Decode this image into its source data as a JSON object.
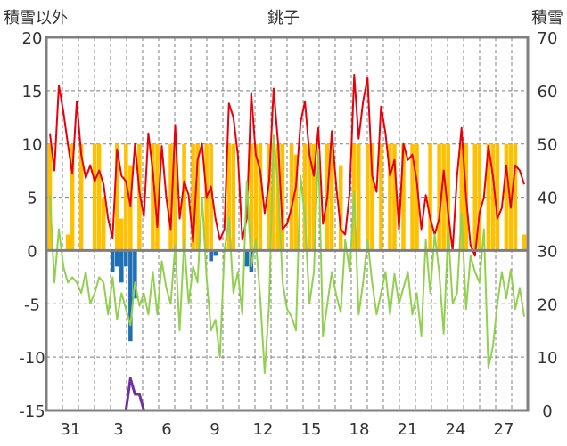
{
  "chart_data": {
    "type": "line",
    "title": "銚子",
    "ylabel_left": "積雪以外",
    "ylabel_right": "積雪",
    "ylim_left": [
      -15,
      20
    ],
    "ylim_right": [
      0,
      70
    ],
    "y_ticks_left": [
      "20",
      "15",
      "10",
      "5",
      "0",
      "-5",
      "-10",
      "-15"
    ],
    "y_ticks_right": [
      "70",
      "60",
      "50",
      "40",
      "30",
      "20",
      "10",
      "0"
    ],
    "x_tick_labels": [
      "31",
      "3",
      "6",
      "9",
      "12",
      "15",
      "18",
      "21",
      "24",
      "27"
    ],
    "colors": {
      "temperature": "#e8000b",
      "temperature_green": "#92d050",
      "sunshine": "#ffc000",
      "precip": "#1f6fb5",
      "snow": "#7030a0",
      "zero_line": "#7f7f7f",
      "frame": "#808080"
    },
    "series": [
      {
        "key": "red",
        "color": "#e8000b",
        "values": [
          11,
          7.5,
          15.5,
          13,
          10,
          7.2,
          14,
          9,
          6.8,
          8,
          6.5,
          7.5,
          6.2,
          3,
          1.2,
          9.5,
          7,
          6.5,
          4.2,
          10,
          5.5,
          3.2,
          11,
          7.5,
          2.2,
          9.8,
          5,
          2,
          11.8,
          3,
          6.5,
          5.2,
          0.8,
          8.5,
          10,
          5,
          6,
          3,
          1,
          2,
          13.8,
          12.5,
          9,
          1,
          3,
          14.8,
          9,
          7.5,
          3.5,
          6.5,
          15.2,
          10,
          2,
          2.5,
          4,
          6,
          12,
          14,
          9,
          7,
          11.5,
          2.5,
          5,
          11.2,
          6,
          2,
          1.5,
          5.5,
          16.5,
          10.5,
          14,
          16.2,
          7,
          5.5,
          13.5,
          11,
          7,
          8.5,
          2,
          10,
          8.5,
          9,
          6.5,
          2,
          5.2,
          3,
          1.5,
          3,
          7.5,
          3.5,
          0,
          7,
          11.5,
          5,
          0.5,
          -0.5,
          3.5,
          5,
          9.8,
          7,
          3,
          4,
          8,
          4,
          8,
          7.5,
          6.2
        ]
      },
      {
        "key": "green",
        "color": "#92d050",
        "values": [
          5.2,
          -3,
          2,
          -1.5,
          -3,
          -2.5,
          -3,
          -4,
          -2,
          -5,
          -4,
          -2.5,
          -3,
          -6,
          -2.5,
          -6.5,
          -4,
          -5.5,
          -7,
          -3,
          -5.2,
          -4,
          -6,
          -2,
          -6,
          -1,
          -3.5,
          -5,
          0.5,
          -7.5,
          1,
          -5,
          -1.5,
          -3,
          5,
          -2.5,
          -7.5,
          -6.5,
          -10,
          0,
          3,
          -4,
          -2,
          -6,
          6.5,
          -1.5,
          1,
          -4.5,
          -11.5,
          -5,
          10.8,
          6,
          -3,
          -5.5,
          -6.2,
          -7.5,
          7,
          3,
          -5,
          -2,
          9.5,
          -8,
          -5,
          -2,
          -4.2,
          -5.8,
          1,
          -2,
          5.5,
          -6,
          -3,
          1,
          -3,
          -6,
          -4,
          -2,
          -6,
          -2.2,
          -5,
          -3.5,
          -2,
          -6,
          -4,
          -8,
          1,
          -4,
          1.5,
          -2,
          -7.8,
          2,
          -5,
          -4,
          3.5,
          -5.5,
          -0.5,
          -2,
          -3,
          2,
          -11,
          -9,
          -5,
          -2,
          -4.5,
          -1.8,
          -5.5,
          -3.5,
          -6.2
        ]
      },
      {
        "key": "yellow",
        "color": "#ffc000",
        "type": "bar",
        "values": [
          10,
          0,
          0,
          0,
          1.5,
          10,
          0,
          10,
          0,
          0,
          10,
          10,
          5,
          0,
          0,
          10,
          3,
          10,
          8,
          0,
          10,
          0,
          0,
          10,
          10,
          0,
          0,
          10,
          10,
          0,
          10,
          0,
          10,
          10,
          0,
          10,
          10,
          0,
          0,
          0,
          10,
          10,
          0,
          0,
          0,
          10,
          10,
          10,
          0,
          10,
          10,
          10,
          10,
          0,
          10,
          9,
          0,
          10,
          10,
          10,
          0,
          0,
          10,
          10,
          0,
          8,
          0,
          0,
          10,
          10,
          0,
          10,
          10,
          0,
          10,
          0,
          10,
          10,
          0,
          10,
          0,
          10,
          10,
          0,
          0,
          10,
          0,
          10,
          10,
          10,
          0,
          0,
          10,
          10,
          0,
          10,
          10,
          0,
          10,
          10,
          10,
          0,
          10,
          10,
          10,
          0,
          1.5
        ]
      },
      {
        "key": "blue",
        "color": "#1f6fb5",
        "type": "bar",
        "values": [
          0,
          0,
          0,
          0,
          0,
          0,
          0,
          0,
          0,
          0,
          0,
          0,
          0,
          0,
          -2,
          -1.5,
          -3,
          -1.5,
          -8.5,
          -4.5,
          0,
          0,
          0,
          0,
          0,
          0,
          0,
          0,
          0,
          0,
          0,
          0,
          0,
          0,
          0,
          0,
          -1,
          -0.5,
          0,
          0,
          0,
          0,
          0,
          0,
          -1.5,
          -2,
          0,
          0,
          0,
          0,
          0,
          0,
          0,
          0,
          0,
          0,
          0,
          0,
          0,
          0,
          0,
          0,
          0,
          0,
          0,
          0,
          0,
          0,
          0,
          0,
          0,
          0,
          0,
          0,
          0,
          0,
          0,
          0,
          0,
          0,
          0,
          0,
          0,
          0,
          0,
          0,
          0,
          0,
          0,
          0,
          0,
          0,
          0,
          0,
          0,
          0,
          0,
          0,
          0,
          0,
          0,
          0,
          0,
          0,
          0,
          0,
          0
        ]
      },
      {
        "key": "purple",
        "color": "#7030a0",
        "axis": "right",
        "values": [
          0,
          0,
          0,
          0,
          0,
          0,
          0,
          0,
          0,
          0,
          0,
          0,
          0,
          0,
          0,
          0,
          0,
          0,
          6,
          3,
          3,
          0,
          0,
          0,
          0,
          0,
          0,
          0,
          0,
          0,
          0,
          0,
          0,
          0,
          0,
          0,
          0,
          0,
          0,
          0,
          0,
          0,
          0,
          0,
          0,
          0,
          0,
          0,
          0,
          0,
          0,
          0,
          0,
          0,
          0,
          0,
          0,
          0,
          0,
          0,
          0,
          0,
          0,
          0,
          0,
          0,
          0,
          0,
          0,
          0,
          0,
          0,
          0,
          0,
          0,
          0,
          0,
          0,
          0,
          0,
          0,
          0,
          0,
          0,
          0,
          0,
          0,
          0,
          0,
          0,
          0,
          0,
          0,
          0,
          0,
          0,
          0,
          0,
          0,
          0,
          0,
          0,
          0,
          0,
          0,
          0,
          0
        ]
      }
    ]
  }
}
